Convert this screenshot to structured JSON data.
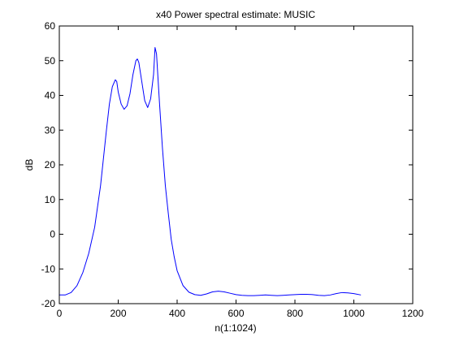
{
  "chart_data": {
    "type": "line",
    "title": "x40 Power spectral estimate: MUSIC",
    "xlabel": "n(1:1024)",
    "ylabel": "dB",
    "xlim": [
      0,
      1200
    ],
    "ylim": [
      -20,
      60
    ],
    "xticks": [
      0,
      200,
      400,
      600,
      800,
      1000,
      1200
    ],
    "yticks": [
      -20,
      -10,
      0,
      10,
      20,
      30,
      40,
      50,
      60
    ],
    "grid": false,
    "line_color": "#0000ff",
    "series": [
      {
        "x": [
          1,
          20,
          40,
          60,
          80,
          100,
          120,
          140,
          150,
          160,
          170,
          180,
          190,
          195,
          200,
          210,
          220,
          230,
          240,
          250,
          260,
          265,
          270,
          280,
          290,
          300,
          310,
          320,
          325,
          330,
          340,
          350,
          360,
          370,
          380,
          390,
          400,
          420,
          440,
          460,
          480,
          500,
          520,
          540,
          560,
          580,
          600,
          620,
          640,
          660,
          680,
          700,
          720,
          740,
          760,
          780,
          800,
          820,
          840,
          860,
          880,
          900,
          920,
          940,
          960,
          980,
          1000,
          1024
        ],
        "y": [
          -17.5,
          -17.5,
          -16.8,
          -14.8,
          -11.0,
          -5.5,
          2.0,
          14.0,
          22.0,
          30.0,
          37.5,
          42.5,
          44.5,
          44.0,
          41.0,
          37.5,
          36.0,
          37.0,
          40.5,
          46.0,
          50.0,
          50.5,
          49.5,
          44.0,
          38.5,
          36.5,
          39.0,
          46.0,
          53.8,
          52.0,
          38.0,
          25.0,
          14.0,
          6.0,
          -1.5,
          -6.5,
          -10.5,
          -14.8,
          -16.7,
          -17.4,
          -17.6,
          -17.2,
          -16.6,
          -16.4,
          -16.6,
          -17.0,
          -17.4,
          -17.6,
          -17.7,
          -17.7,
          -17.6,
          -17.5,
          -17.6,
          -17.7,
          -17.6,
          -17.5,
          -17.4,
          -17.3,
          -17.3,
          -17.4,
          -17.6,
          -17.7,
          -17.5,
          -17.1,
          -16.8,
          -16.9,
          -17.1,
          -17.5
        ]
      }
    ]
  }
}
